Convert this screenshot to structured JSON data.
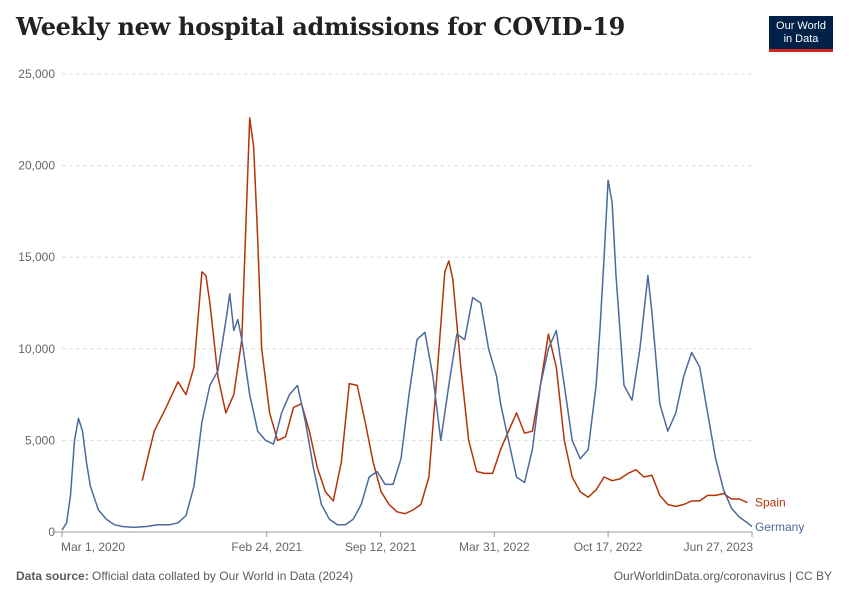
{
  "title": "Weekly new hospital admissions for COVID-19",
  "logo": {
    "line1": "Our World",
    "line2": "in Data"
  },
  "footer": {
    "source_label": "Data source:",
    "source_text": "Official data collated by Our World in Data (2024)",
    "right_text": "OurWorldinData.org/coronavirus | CC BY"
  },
  "chart_data": {
    "type": "line",
    "title": "Weekly new hospital admissions for COVID-19",
    "xlabel": "",
    "ylabel": "",
    "ylim": [
      0,
      25000
    ],
    "xlim": [
      "2020-03-01",
      "2023-06-27"
    ],
    "y_ticks": [
      0,
      5000,
      10000,
      15000,
      20000,
      25000
    ],
    "y_tick_labels": [
      "0",
      "5,000",
      "10,000",
      "15,000",
      "20,000",
      "25,000"
    ],
    "x_ticks": [
      "2020-03-01",
      "2021-02-24",
      "2021-09-12",
      "2022-03-31",
      "2022-10-17",
      "2023-06-27"
    ],
    "x_tick_labels": [
      "Mar 1, 2020",
      "Feb 24, 2021",
      "Sep 12, 2021",
      "Mar 31, 2022",
      "Oct 17, 2022",
      "Jun 27, 2023"
    ],
    "grid": true,
    "legend": "inline labels at line ends (right)",
    "series": [
      {
        "name": "Spain",
        "color": "#b13507",
        "points": [
          [
            "2020-07-20",
            2800
          ],
          [
            "2020-08-10",
            5500
          ],
          [
            "2020-08-31",
            6800
          ],
          [
            "2020-09-21",
            8200
          ],
          [
            "2020-10-05",
            7500
          ],
          [
            "2020-10-19",
            9000
          ],
          [
            "2020-11-02",
            14200
          ],
          [
            "2020-11-09",
            14000
          ],
          [
            "2020-11-16",
            12500
          ],
          [
            "2020-11-30",
            8500
          ],
          [
            "2020-12-14",
            6500
          ],
          [
            "2020-12-28",
            7500
          ],
          [
            "2021-01-11",
            10500
          ],
          [
            "2021-01-25",
            22600
          ],
          [
            "2021-02-01",
            21000
          ],
          [
            "2021-02-08",
            16000
          ],
          [
            "2021-02-15",
            10000
          ],
          [
            "2021-03-01",
            6500
          ],
          [
            "2021-03-15",
            5000
          ],
          [
            "2021-03-29",
            5200
          ],
          [
            "2021-04-12",
            6800
          ],
          [
            "2021-04-26",
            7000
          ],
          [
            "2021-05-10",
            5500
          ],
          [
            "2021-05-24",
            3500
          ],
          [
            "2021-06-07",
            2200
          ],
          [
            "2021-06-21",
            1700
          ],
          [
            "2021-07-05",
            3800
          ],
          [
            "2021-07-19",
            8100
          ],
          [
            "2021-08-02",
            8000
          ],
          [
            "2021-08-16",
            6000
          ],
          [
            "2021-08-30",
            3800
          ],
          [
            "2021-09-13",
            2200
          ],
          [
            "2021-09-27",
            1500
          ],
          [
            "2021-10-11",
            1100
          ],
          [
            "2021-10-25",
            1000
          ],
          [
            "2021-11-08",
            1200
          ],
          [
            "2021-11-22",
            1500
          ],
          [
            "2021-12-06",
            3000
          ],
          [
            "2021-12-20",
            8500
          ],
          [
            "2022-01-03",
            14200
          ],
          [
            "2022-01-10",
            14800
          ],
          [
            "2022-01-17",
            13800
          ],
          [
            "2022-01-31",
            9000
          ],
          [
            "2022-02-14",
            5000
          ],
          [
            "2022-02-28",
            3300
          ],
          [
            "2022-03-14",
            3200
          ],
          [
            "2022-03-28",
            3200
          ],
          [
            "2022-04-11",
            4500
          ],
          [
            "2022-04-25",
            5500
          ],
          [
            "2022-05-09",
            6500
          ],
          [
            "2022-05-23",
            5400
          ],
          [
            "2022-06-06",
            5500
          ],
          [
            "2022-06-20",
            8000
          ],
          [
            "2022-07-04",
            10800
          ],
          [
            "2022-07-18",
            9000
          ],
          [
            "2022-08-01",
            5000
          ],
          [
            "2022-08-15",
            3000
          ],
          [
            "2022-08-29",
            2200
          ],
          [
            "2022-09-12",
            1900
          ],
          [
            "2022-09-26",
            2300
          ],
          [
            "2022-10-10",
            3000
          ],
          [
            "2022-10-24",
            2800
          ],
          [
            "2022-11-07",
            2900
          ],
          [
            "2022-11-21",
            3200
          ],
          [
            "2022-12-05",
            3400
          ],
          [
            "2022-12-19",
            3000
          ],
          [
            "2023-01-02",
            3100
          ],
          [
            "2023-01-16",
            2000
          ],
          [
            "2023-01-30",
            1500
          ],
          [
            "2023-02-13",
            1400
          ],
          [
            "2023-02-27",
            1500
          ],
          [
            "2023-03-13",
            1700
          ],
          [
            "2023-03-27",
            1700
          ],
          [
            "2023-04-10",
            2000
          ],
          [
            "2023-04-24",
            2000
          ],
          [
            "2023-05-08",
            2100
          ],
          [
            "2023-05-22",
            1800
          ],
          [
            "2023-06-05",
            1800
          ],
          [
            "2023-06-19",
            1600
          ]
        ]
      },
      {
        "name": "Germany",
        "color": "#4c6a9c",
        "points": [
          [
            "2020-03-01",
            100
          ],
          [
            "2020-03-09",
            500
          ],
          [
            "2020-03-16",
            2000
          ],
          [
            "2020-03-23",
            5000
          ],
          [
            "2020-03-30",
            6200
          ],
          [
            "2020-04-06",
            5500
          ],
          [
            "2020-04-13",
            3800
          ],
          [
            "2020-04-20",
            2500
          ],
          [
            "2020-05-04",
            1200
          ],
          [
            "2020-05-18",
            700
          ],
          [
            "2020-06-01",
            400
          ],
          [
            "2020-06-15",
            300
          ],
          [
            "2020-07-06",
            250
          ],
          [
            "2020-07-27",
            300
          ],
          [
            "2020-08-17",
            400
          ],
          [
            "2020-09-07",
            400
          ],
          [
            "2020-09-21",
            500
          ],
          [
            "2020-10-05",
            900
          ],
          [
            "2020-10-19",
            2500
          ],
          [
            "2020-11-02",
            6000
          ],
          [
            "2020-11-16",
            8000
          ],
          [
            "2020-11-30",
            8800
          ],
          [
            "2020-12-14",
            11500
          ],
          [
            "2020-12-21",
            13000
          ],
          [
            "2020-12-28",
            11000
          ],
          [
            "2021-01-04",
            11600
          ],
          [
            "2021-01-11",
            10500
          ],
          [
            "2021-01-25",
            7500
          ],
          [
            "2021-02-08",
            5500
          ],
          [
            "2021-02-22",
            5000
          ],
          [
            "2021-03-08",
            4800
          ],
          [
            "2021-03-22",
            6500
          ],
          [
            "2021-04-05",
            7500
          ],
          [
            "2021-04-19",
            8000
          ],
          [
            "2021-05-03",
            6000
          ],
          [
            "2021-05-17",
            3500
          ],
          [
            "2021-05-31",
            1500
          ],
          [
            "2021-06-14",
            700
          ],
          [
            "2021-06-28",
            400
          ],
          [
            "2021-07-12",
            400
          ],
          [
            "2021-07-26",
            700
          ],
          [
            "2021-08-09",
            1500
          ],
          [
            "2021-08-23",
            3000
          ],
          [
            "2021-09-06",
            3300
          ],
          [
            "2021-09-20",
            2600
          ],
          [
            "2021-10-04",
            2600
          ],
          [
            "2021-10-18",
            4000
          ],
          [
            "2021-11-01",
            7500
          ],
          [
            "2021-11-15",
            10500
          ],
          [
            "2021-11-29",
            10900
          ],
          [
            "2021-12-13",
            8500
          ],
          [
            "2021-12-27",
            5000
          ],
          [
            "2022-01-10",
            8000
          ],
          [
            "2022-01-24",
            10800
          ],
          [
            "2022-02-07",
            10500
          ],
          [
            "2022-02-21",
            12800
          ],
          [
            "2022-03-07",
            12500
          ],
          [
            "2022-03-21",
            10000
          ],
          [
            "2022-04-04",
            8500
          ],
          [
            "2022-04-11",
            7000
          ],
          [
            "2022-04-25",
            5000
          ],
          [
            "2022-05-09",
            3000
          ],
          [
            "2022-05-23",
            2700
          ],
          [
            "2022-06-06",
            4500
          ],
          [
            "2022-06-20",
            8000
          ],
          [
            "2022-07-04",
            10000
          ],
          [
            "2022-07-18",
            11000
          ],
          [
            "2022-08-01",
            8000
          ],
          [
            "2022-08-15",
            5000
          ],
          [
            "2022-08-29",
            4000
          ],
          [
            "2022-09-12",
            4500
          ],
          [
            "2022-09-26",
            8000
          ],
          [
            "2022-10-03",
            11200
          ],
          [
            "2022-10-10",
            15000
          ],
          [
            "2022-10-17",
            19200
          ],
          [
            "2022-10-24",
            18000
          ],
          [
            "2022-10-31",
            14000
          ],
          [
            "2022-11-14",
            8000
          ],
          [
            "2022-11-28",
            7200
          ],
          [
            "2022-12-12",
            10000
          ],
          [
            "2022-12-26",
            14000
          ],
          [
            "2023-01-02",
            12000
          ],
          [
            "2023-01-16",
            7000
          ],
          [
            "2023-01-30",
            5500
          ],
          [
            "2023-02-13",
            6500
          ],
          [
            "2023-02-27",
            8500
          ],
          [
            "2023-03-13",
            9800
          ],
          [
            "2023-03-27",
            9000
          ],
          [
            "2023-04-10",
            6500
          ],
          [
            "2023-04-24",
            4000
          ],
          [
            "2023-05-08",
            2300
          ],
          [
            "2023-05-22",
            1300
          ],
          [
            "2023-06-05",
            800
          ],
          [
            "2023-06-19",
            500
          ],
          [
            "2023-06-27",
            300
          ]
        ]
      }
    ]
  }
}
